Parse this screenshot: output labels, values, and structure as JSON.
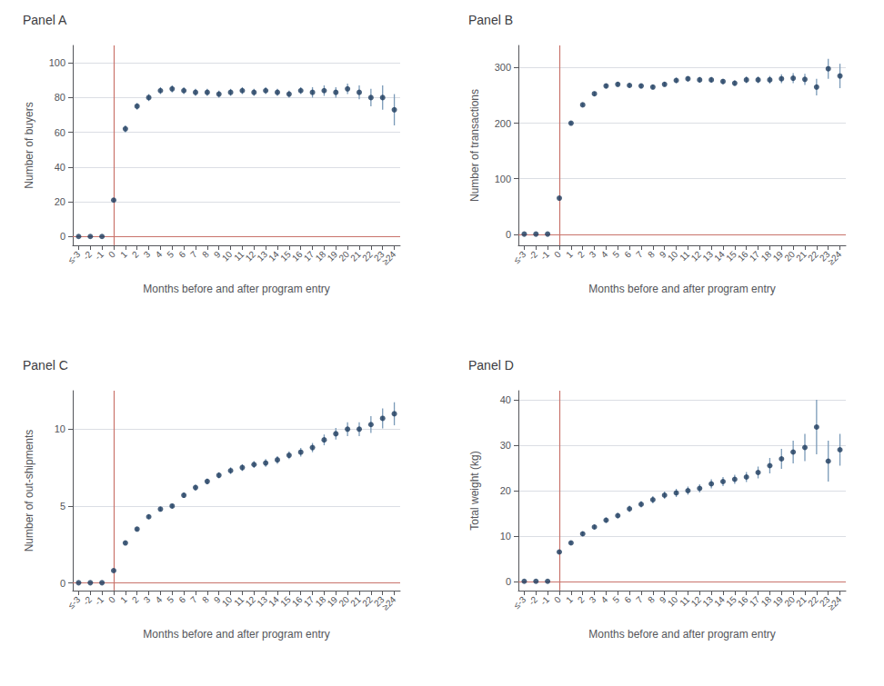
{
  "chart_data": [
    {
      "type": "scatter",
      "title": "Panel A",
      "xlabel": "Months before and after program entry",
      "ylabel": "Number of buyers",
      "categories": [
        "≤-3",
        "-2",
        "-1",
        "0",
        "1",
        "2",
        "3",
        "4",
        "5",
        "6",
        "7",
        "8",
        "9",
        "10",
        "11",
        "12",
        "13",
        "14",
        "15",
        "16",
        "17",
        "18",
        "19",
        "20",
        "21",
        "22",
        "23",
        "≥24"
      ],
      "values": [
        0.1,
        0.1,
        0.1,
        21,
        62,
        75,
        80,
        84,
        85,
        84,
        83,
        83,
        82,
        83,
        84,
        83,
        84,
        83,
        82,
        84,
        83,
        84,
        83,
        85,
        83,
        80,
        80,
        73
      ],
      "error_bars": {
        "low": [
          0.3,
          0.3,
          0.3,
          1,
          2,
          2,
          2,
          2,
          2,
          2,
          2,
          2,
          2,
          2,
          2,
          2,
          2,
          2,
          2,
          2,
          3,
          3,
          3,
          3,
          4,
          5,
          7,
          9
        ],
        "high": [
          0.3,
          0.3,
          0.3,
          1,
          2,
          2,
          2,
          2,
          2,
          2,
          2,
          2,
          2,
          2,
          2,
          2,
          2,
          2,
          2,
          2,
          3,
          3,
          3,
          3,
          4,
          5,
          7,
          9
        ],
        "color": "#7a9ab8"
      },
      "reference_lines": [
        {
          "axis": "x",
          "value": "0",
          "color": "#c9736b"
        },
        {
          "axis": "y",
          "value": 0,
          "color": "#c9736b"
        }
      ],
      "color": "#1b3a5c",
      "marker": "circle",
      "ylim": [
        -5,
        110
      ],
      "yticks": [
        0,
        20,
        40,
        60,
        80,
        100
      ],
      "grid": true
    },
    {
      "type": "scatter",
      "title": "Panel B",
      "xlabel": "Months before and after program entry",
      "ylabel": "Number of transactions",
      "categories": [
        "≤-3",
        "-2",
        "-1",
        "0",
        "1",
        "2",
        "3",
        "4",
        "5",
        "6",
        "7",
        "8",
        "9",
        "10",
        "11",
        "12",
        "13",
        "14",
        "15",
        "16",
        "17",
        "18",
        "19",
        "20",
        "21",
        "22",
        "23",
        "≥24"
      ],
      "values": [
        0.3,
        0.3,
        0.3,
        65,
        200,
        233,
        253,
        267,
        270,
        268,
        267,
        265,
        270,
        277,
        280,
        278,
        278,
        275,
        272,
        278,
        278,
        278,
        280,
        281,
        279,
        265,
        298,
        285
      ],
      "error_bars": {
        "low": [
          0.5,
          0.5,
          0.5,
          2,
          3,
          3,
          4,
          4,
          4,
          4,
          4,
          4,
          4,
          5,
          5,
          5,
          5,
          5,
          5,
          6,
          6,
          7,
          8,
          9,
          10,
          15,
          18,
          22
        ],
        "high": [
          0.5,
          0.5,
          0.5,
          2,
          3,
          3,
          4,
          4,
          4,
          4,
          4,
          4,
          4,
          5,
          5,
          5,
          5,
          5,
          5,
          6,
          6,
          7,
          8,
          9,
          10,
          15,
          18,
          22
        ],
        "color": "#7a9ab8"
      },
      "reference_lines": [
        {
          "axis": "x",
          "value": "0",
          "color": "#c9736b"
        },
        {
          "axis": "y",
          "value": 0,
          "color": "#c9736b"
        }
      ],
      "color": "#1b3a5c",
      "marker": "circle",
      "ylim": [
        -20,
        340
      ],
      "yticks": [
        0,
        100,
        200,
        300
      ],
      "grid": true
    },
    {
      "type": "scatter",
      "title": "Panel C",
      "xlabel": "Months before and after program entry",
      "ylabel": "Number of out-shipments",
      "categories": [
        "≤-3",
        "-2",
        "-1",
        "0",
        "1",
        "2",
        "3",
        "4",
        "5",
        "6",
        "7",
        "8",
        "9",
        "10",
        "11",
        "12",
        "13",
        "14",
        "15",
        "16",
        "17",
        "18",
        "19",
        "20",
        "21",
        "22",
        "23",
        "≥24"
      ],
      "values": [
        0.01,
        0.01,
        0.01,
        0.8,
        2.6,
        3.5,
        4.3,
        4.8,
        5.0,
        5.7,
        6.2,
        6.6,
        7.0,
        7.3,
        7.5,
        7.7,
        7.8,
        8.0,
        8.3,
        8.5,
        8.8,
        9.3,
        9.7,
        10.0,
        10.0,
        10.3,
        10.7,
        11.0
      ],
      "error_bars": {
        "low": [
          0.02,
          0.02,
          0.02,
          0.05,
          0.12,
          0.12,
          0.15,
          0.15,
          0.15,
          0.18,
          0.18,
          0.18,
          0.2,
          0.22,
          0.22,
          0.22,
          0.25,
          0.25,
          0.25,
          0.28,
          0.3,
          0.35,
          0.38,
          0.45,
          0.45,
          0.55,
          0.65,
          0.75
        ],
        "high": [
          0.02,
          0.02,
          0.02,
          0.05,
          0.12,
          0.12,
          0.15,
          0.15,
          0.15,
          0.18,
          0.18,
          0.18,
          0.2,
          0.22,
          0.22,
          0.22,
          0.25,
          0.25,
          0.25,
          0.28,
          0.3,
          0.35,
          0.38,
          0.45,
          0.45,
          0.55,
          0.65,
          0.75
        ],
        "color": "#7a9ab8"
      },
      "reference_lines": [
        {
          "axis": "x",
          "value": "0",
          "color": "#c9736b"
        },
        {
          "axis": "y",
          "value": 0,
          "color": "#c9736b"
        }
      ],
      "color": "#1b3a5c",
      "marker": "circle",
      "ylim": [
        -0.5,
        12.5
      ],
      "yticks": [
        0,
        5,
        10
      ],
      "grid": true
    },
    {
      "type": "scatter",
      "title": "Panel D",
      "xlabel": "Months before and after program entry",
      "ylabel": "Total weight (kg)",
      "categories": [
        "≤-3",
        "-2",
        "-1",
        "0",
        "1",
        "2",
        "3",
        "4",
        "5",
        "6",
        "7",
        "8",
        "9",
        "10",
        "11",
        "12",
        "13",
        "14",
        "15",
        "16",
        "17",
        "18",
        "19",
        "20",
        "21",
        "22",
        "23",
        "≥24"
      ],
      "values": [
        0.05,
        0.05,
        0.05,
        6.5,
        8.5,
        10.5,
        12.0,
        13.5,
        14.5,
        16.0,
        17.0,
        18.0,
        19.0,
        19.5,
        20.0,
        20.5,
        21.5,
        22.0,
        22.5,
        23.0,
        24.0,
        25.5,
        27.0,
        28.5,
        29.5,
        34.0,
        26.5,
        29.0
      ],
      "error_bars": {
        "low": [
          0.05,
          0.05,
          0.05,
          0.3,
          0.4,
          0.5,
          0.5,
          0.6,
          0.6,
          0.7,
          0.7,
          0.8,
          0.8,
          0.9,
          0.9,
          0.9,
          1.0,
          1.0,
          1.0,
          1.1,
          1.3,
          1.7,
          2.2,
          2.5,
          3.0,
          6.0,
          4.5,
          3.5
        ],
        "high": [
          0.05,
          0.05,
          0.05,
          0.3,
          0.4,
          0.5,
          0.5,
          0.6,
          0.6,
          0.7,
          0.7,
          0.8,
          0.8,
          0.9,
          0.9,
          0.9,
          1.0,
          1.0,
          1.0,
          1.1,
          1.3,
          1.7,
          2.2,
          2.5,
          3.0,
          6.0,
          4.5,
          3.5
        ],
        "color": "#7a9ab8"
      },
      "reference_lines": [
        {
          "axis": "x",
          "value": "0",
          "color": "#c9736b"
        },
        {
          "axis": "y",
          "value": 0,
          "color": "#c9736b"
        }
      ],
      "color": "#1b3a5c",
      "marker": "circle",
      "ylim": [
        -2,
        42
      ],
      "yticks": [
        0,
        10,
        20,
        30,
        40
      ],
      "grid": true
    }
  ]
}
